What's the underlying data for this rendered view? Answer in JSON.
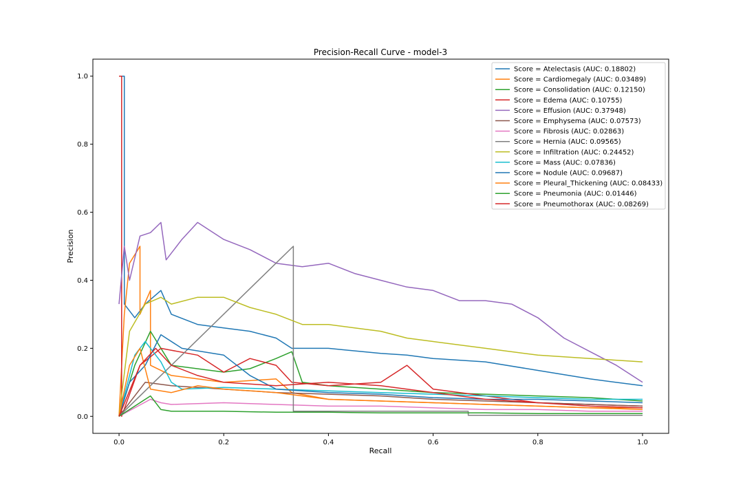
{
  "chart_data": {
    "type": "line",
    "title": "Precision-Recall Curve - model-3",
    "xlabel": "Recall",
    "ylabel": "Precision",
    "xlim": [
      -0.05,
      1.05
    ],
    "ylim": [
      -0.05,
      1.05
    ],
    "xticks": [
      "0.0",
      "0.2",
      "0.4",
      "0.6",
      "0.8",
      "1.0"
    ],
    "yticks": [
      "0.0",
      "0.2",
      "0.4",
      "0.6",
      "0.8",
      "1.0"
    ],
    "grid": false,
    "legend_position": "top-right",
    "series": [
      {
        "name": "Score = Atelectasis (AUC: 0.18802)",
        "color": "#1f77b4",
        "points": [
          [
            0,
            1.0
          ],
          [
            0.01,
            1.0
          ],
          [
            0.01,
            0.33
          ],
          [
            0.03,
            0.29
          ],
          [
            0.05,
            0.33
          ],
          [
            0.08,
            0.37
          ],
          [
            0.1,
            0.3
          ],
          [
            0.15,
            0.27
          ],
          [
            0.2,
            0.26
          ],
          [
            0.25,
            0.25
          ],
          [
            0.3,
            0.23
          ],
          [
            0.33,
            0.2
          ],
          [
            0.4,
            0.2
          ],
          [
            0.5,
            0.185
          ],
          [
            0.55,
            0.18
          ],
          [
            0.6,
            0.17
          ],
          [
            0.7,
            0.16
          ],
          [
            0.8,
            0.135
          ],
          [
            0.9,
            0.11
          ],
          [
            1.0,
            0.09
          ]
        ]
      },
      {
        "name": "Score = Cardiomegaly (AUC: 0.03489)",
        "color": "#ff7f0e",
        "points": [
          [
            0,
            0.0
          ],
          [
            0.01,
            0.3
          ],
          [
            0.02,
            0.45
          ],
          [
            0.04,
            0.5
          ],
          [
            0.04,
            0.3
          ],
          [
            0.06,
            0.37
          ],
          [
            0.06,
            0.15
          ],
          [
            0.1,
            0.12
          ],
          [
            0.2,
            0.1
          ],
          [
            0.3,
            0.11
          ],
          [
            0.33,
            0.07
          ],
          [
            0.4,
            0.05
          ],
          [
            0.5,
            0.045
          ],
          [
            0.6,
            0.04
          ],
          [
            0.7,
            0.035
          ],
          [
            0.8,
            0.03
          ],
          [
            0.9,
            0.025
          ],
          [
            1.0,
            0.025
          ]
        ]
      },
      {
        "name": "Score = Consolidation (AUC: 0.12150)",
        "color": "#2ca02c",
        "points": [
          [
            0,
            0.0
          ],
          [
            0.03,
            0.15
          ],
          [
            0.06,
            0.25
          ],
          [
            0.1,
            0.15
          ],
          [
            0.2,
            0.13
          ],
          [
            0.25,
            0.14
          ],
          [
            0.3,
            0.17
          ],
          [
            0.33,
            0.19
          ],
          [
            0.35,
            0.1
          ],
          [
            0.4,
            0.09
          ],
          [
            0.5,
            0.08
          ],
          [
            0.6,
            0.07
          ],
          [
            0.7,
            0.065
          ],
          [
            0.8,
            0.06
          ],
          [
            0.9,
            0.055
          ],
          [
            1.0,
            0.045
          ]
        ]
      },
      {
        "name": "Score = Edema (AUC: 0.10755)",
        "color": "#d62728",
        "points": [
          [
            0,
            1.0
          ],
          [
            0.005,
            1.0
          ],
          [
            0.005,
            0.0
          ],
          [
            0.04,
            0.15
          ],
          [
            0.08,
            0.2
          ],
          [
            0.15,
            0.18
          ],
          [
            0.2,
            0.13
          ],
          [
            0.25,
            0.17
          ],
          [
            0.3,
            0.15
          ],
          [
            0.33,
            0.1
          ],
          [
            0.4,
            0.09
          ],
          [
            0.5,
            0.1
          ],
          [
            0.55,
            0.15
          ],
          [
            0.6,
            0.08
          ],
          [
            0.7,
            0.06
          ],
          [
            0.8,
            0.04
          ],
          [
            0.9,
            0.035
          ],
          [
            1.0,
            0.03
          ]
        ]
      },
      {
        "name": "Score = Effusion (AUC: 0.37948)",
        "color": "#9467bd",
        "points": [
          [
            0,
            0.33
          ],
          [
            0.01,
            0.5
          ],
          [
            0.02,
            0.4
          ],
          [
            0.04,
            0.53
          ],
          [
            0.06,
            0.54
          ],
          [
            0.08,
            0.57
          ],
          [
            0.09,
            0.46
          ],
          [
            0.12,
            0.52
          ],
          [
            0.15,
            0.57
          ],
          [
            0.2,
            0.52
          ],
          [
            0.25,
            0.49
          ],
          [
            0.3,
            0.45
          ],
          [
            0.35,
            0.44
          ],
          [
            0.4,
            0.45
          ],
          [
            0.45,
            0.42
          ],
          [
            0.5,
            0.4
          ],
          [
            0.55,
            0.38
          ],
          [
            0.6,
            0.37
          ],
          [
            0.65,
            0.34
          ],
          [
            0.7,
            0.34
          ],
          [
            0.75,
            0.33
          ],
          [
            0.8,
            0.29
          ],
          [
            0.85,
            0.23
          ],
          [
            0.9,
            0.19
          ],
          [
            0.95,
            0.15
          ],
          [
            1.0,
            0.1
          ]
        ]
      },
      {
        "name": "Score = Emphysema (AUC: 0.07573)",
        "color": "#8c564b",
        "points": [
          [
            0,
            0.0
          ],
          [
            0.05,
            0.1
          ],
          [
            0.1,
            0.09
          ],
          [
            0.2,
            0.08
          ],
          [
            0.3,
            0.07
          ],
          [
            0.4,
            0.065
          ],
          [
            0.5,
            0.06
          ],
          [
            0.6,
            0.05
          ],
          [
            0.7,
            0.045
          ],
          [
            0.8,
            0.04
          ],
          [
            0.9,
            0.035
          ],
          [
            1.0,
            0.03
          ]
        ]
      },
      {
        "name": "Score = Fibrosis (AUC: 0.02863)",
        "color": "#e377c2",
        "points": [
          [
            0,
            0.0
          ],
          [
            0.06,
            0.05
          ],
          [
            0.08,
            0.04
          ],
          [
            0.1,
            0.035
          ],
          [
            0.2,
            0.04
          ],
          [
            0.3,
            0.035
          ],
          [
            0.4,
            0.03
          ],
          [
            0.5,
            0.03
          ],
          [
            0.6,
            0.025
          ],
          [
            0.7,
            0.02
          ],
          [
            0.8,
            0.02
          ],
          [
            0.9,
            0.015
          ],
          [
            1.0,
            0.015
          ]
        ]
      },
      {
        "name": "Score = Hernia (AUC: 0.09565)",
        "color": "#7f7f7f",
        "points": [
          [
            0,
            0.0
          ],
          [
            0.333,
            0.5
          ],
          [
            0.333,
            0.015
          ],
          [
            0.667,
            0.015
          ],
          [
            0.667,
            0.003
          ],
          [
            1.0,
            0.003
          ]
        ]
      },
      {
        "name": "Score = Infiltration (AUC: 0.24452)",
        "color": "#bcbd22",
        "points": [
          [
            0,
            0.0
          ],
          [
            0.02,
            0.25
          ],
          [
            0.05,
            0.33
          ],
          [
            0.08,
            0.35
          ],
          [
            0.1,
            0.33
          ],
          [
            0.15,
            0.35
          ],
          [
            0.2,
            0.35
          ],
          [
            0.25,
            0.32
          ],
          [
            0.3,
            0.3
          ],
          [
            0.35,
            0.27
          ],
          [
            0.4,
            0.27
          ],
          [
            0.45,
            0.26
          ],
          [
            0.5,
            0.25
          ],
          [
            0.55,
            0.23
          ],
          [
            0.6,
            0.22
          ],
          [
            0.7,
            0.2
          ],
          [
            0.8,
            0.18
          ],
          [
            0.9,
            0.17
          ],
          [
            1.0,
            0.16
          ]
        ]
      },
      {
        "name": "Score = Mass (AUC: 0.07836)",
        "color": "#17becf",
        "points": [
          [
            0,
            0.0
          ],
          [
            0.03,
            0.18
          ],
          [
            0.05,
            0.22
          ],
          [
            0.08,
            0.16
          ],
          [
            0.1,
            0.1
          ],
          [
            0.12,
            0.08
          ],
          [
            0.2,
            0.085
          ],
          [
            0.3,
            0.08
          ],
          [
            0.4,
            0.075
          ],
          [
            0.5,
            0.07
          ],
          [
            0.6,
            0.065
          ],
          [
            0.7,
            0.06
          ],
          [
            0.8,
            0.055
          ],
          [
            0.9,
            0.05
          ],
          [
            1.0,
            0.05
          ]
        ]
      },
      {
        "name": "Score = Nodule (AUC: 0.09687)",
        "color": "#1f77b4",
        "points": [
          [
            0,
            0.0
          ],
          [
            0.02,
            0.1
          ],
          [
            0.05,
            0.15
          ],
          [
            0.08,
            0.24
          ],
          [
            0.12,
            0.2
          ],
          [
            0.2,
            0.18
          ],
          [
            0.25,
            0.12
          ],
          [
            0.3,
            0.08
          ],
          [
            0.4,
            0.07
          ],
          [
            0.5,
            0.065
          ],
          [
            0.6,
            0.055
          ],
          [
            0.7,
            0.05
          ],
          [
            0.8,
            0.05
          ],
          [
            0.9,
            0.045
          ],
          [
            1.0,
            0.04
          ]
        ]
      },
      {
        "name": "Score = Pleural_Thickening (AUC: 0.08433)",
        "color": "#ff7f0e",
        "points": [
          [
            0,
            0.0
          ],
          [
            0.02,
            0.15
          ],
          [
            0.04,
            0.2
          ],
          [
            0.06,
            0.08
          ],
          [
            0.1,
            0.07
          ],
          [
            0.15,
            0.09
          ],
          [
            0.2,
            0.08
          ],
          [
            0.3,
            0.07
          ],
          [
            0.4,
            0.05
          ],
          [
            0.5,
            0.045
          ],
          [
            0.6,
            0.04
          ],
          [
            0.7,
            0.035
          ],
          [
            0.8,
            0.03
          ],
          [
            0.9,
            0.025
          ],
          [
            1.0,
            0.02
          ]
        ]
      },
      {
        "name": "Score = Pneumonia (AUC: 0.01446)",
        "color": "#2ca02c",
        "points": [
          [
            0,
            0.0
          ],
          [
            0.06,
            0.06
          ],
          [
            0.08,
            0.02
          ],
          [
            0.1,
            0.015
          ],
          [
            0.2,
            0.015
          ],
          [
            0.3,
            0.012
          ],
          [
            0.4,
            0.012
          ],
          [
            0.5,
            0.01
          ],
          [
            0.6,
            0.01
          ],
          [
            0.7,
            0.01
          ],
          [
            0.8,
            0.008
          ],
          [
            0.9,
            0.008
          ],
          [
            1.0,
            0.008
          ]
        ]
      },
      {
        "name": "Score = Pneumothorax (AUC: 0.08269)",
        "color": "#d62728",
        "points": [
          [
            0,
            0.0
          ],
          [
            0.04,
            0.15
          ],
          [
            0.07,
            0.2
          ],
          [
            0.1,
            0.15
          ],
          [
            0.15,
            0.12
          ],
          [
            0.2,
            0.1
          ],
          [
            0.3,
            0.09
          ],
          [
            0.4,
            0.1
          ],
          [
            0.5,
            0.09
          ],
          [
            0.6,
            0.07
          ],
          [
            0.7,
            0.05
          ],
          [
            0.8,
            0.04
          ],
          [
            0.9,
            0.03
          ],
          [
            1.0,
            0.025
          ]
        ]
      }
    ]
  }
}
